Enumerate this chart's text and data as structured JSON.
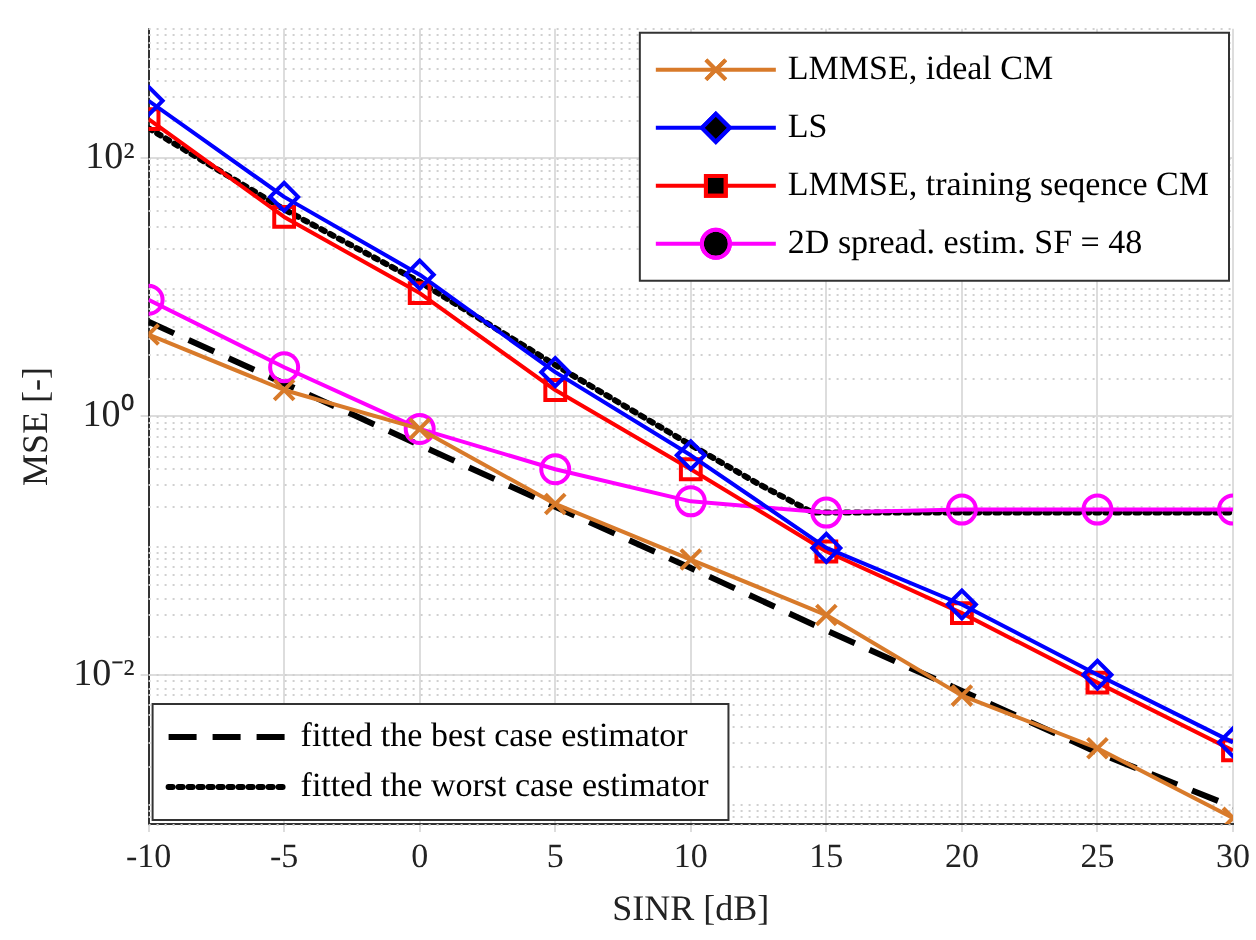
{
  "chart_data": {
    "type": "line",
    "xlabel": "SINR [dB]",
    "ylabel": "MSE [-]",
    "log": "y",
    "grid": true,
    "legend": "top right",
    "x": [
      -10,
      -5,
      0,
      5,
      10,
      15,
      20,
      25,
      30
    ],
    "xlim": [
      -10,
      30
    ],
    "xticks": [
      -10,
      -5,
      0,
      5,
      10,
      15,
      20,
      25,
      30
    ],
    "ylim": [
      0.0007,
      1000
    ],
    "yticks": [
      {
        "value": 0.01,
        "label": "10⁻²"
      },
      {
        "value": 1,
        "label": "10⁰"
      },
      {
        "value": 100,
        "label": "10²"
      }
    ],
    "series": [
      {
        "name": "LMMSE, ideal CM",
        "color": "#d87a2a",
        "marker": "cross",
        "line_style": "solid",
        "values": [
          4.3,
          1.6,
          0.8,
          0.21,
          0.078,
          0.029,
          0.0069,
          0.0027,
          0.00078
        ]
      },
      {
        "name": "LS",
        "color": "#0000ff",
        "marker": "diamond",
        "line_style": "solid",
        "values": [
          277,
          50,
          12.5,
          2.2,
          0.5,
          0.096,
          0.035,
          0.01,
          0.003
        ]
      },
      {
        "name": "LMMSE, training seqence CM",
        "color": "#ff0000",
        "marker": "square",
        "line_style": "solid",
        "values": [
          200,
          35,
          9,
          1.6,
          0.39,
          0.09,
          0.03,
          0.0087,
          0.0026
        ]
      },
      {
        "name": "2D spread. estim. SF = 48",
        "color": "#ff00ff",
        "marker": "circle",
        "line_style": "solid",
        "values": [
          8,
          2.4,
          0.8,
          0.39,
          0.22,
          0.18,
          0.19,
          0.19,
          0.19
        ]
      },
      {
        "name": "fitted the best case estimator",
        "color": "#000000",
        "marker": "none",
        "line_style": "dashed",
        "values": [
          5.4,
          1.8,
          0.6,
          0.2,
          0.067,
          0.022,
          0.0075,
          0.0025,
          0.00095
        ]
      },
      {
        "name": "fitted the worst case estimator",
        "color": "#000000",
        "marker": "none",
        "line_style": "dotted",
        "x": [
          -10,
          -5,
          0,
          5,
          10,
          12.5,
          14.5,
          15,
          20,
          25,
          30
        ],
        "values": [
          170,
          40,
          11,
          2.5,
          0.6,
          0.3,
          0.18,
          0.18,
          0.18,
          0.18,
          0.18
        ]
      }
    ]
  }
}
